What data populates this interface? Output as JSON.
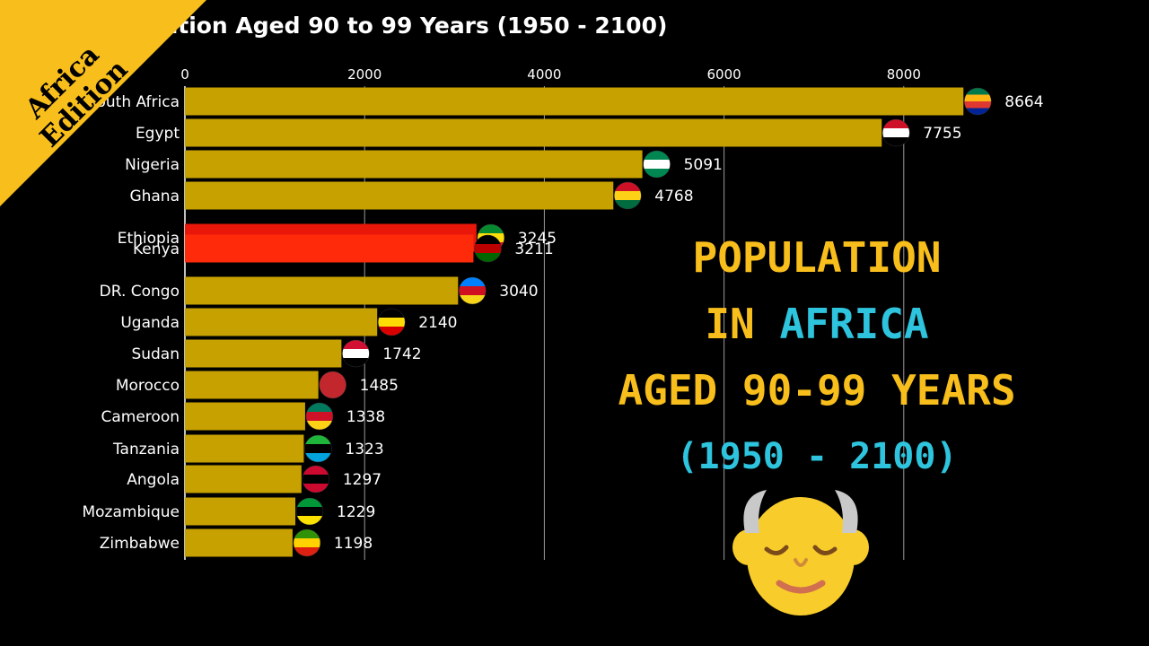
{
  "chart_data": {
    "type": "bar",
    "orientation": "horizontal",
    "title": "ulation Aged 90 to 99 Years (1950 - 2100)",
    "categories": [
      "South Africa",
      "Egypt",
      "Nigeria",
      "Ghana",
      "Ethiopia",
      "Kenya",
      "DR. Congo",
      "Uganda",
      "Sudan",
      "Morocco",
      "Cameroon",
      "Tanzania",
      "Angola",
      "Mozambique",
      "Zimbabwe"
    ],
    "category_display": [
      "outh Africa",
      "Egypt",
      "Nigeria",
      "Ghana",
      "Ethiopia",
      "Kenya",
      "DR. Congo",
      "Uganda",
      "Sudan",
      "Morocco",
      "Cameroon",
      "Tanzania",
      "Angola",
      "Mozambique",
      "Zimbabwe"
    ],
    "values": [
      8664,
      7755,
      5091,
      4768,
      3245,
      3211,
      3040,
      2140,
      1742,
      1485,
      1338,
      1323,
      1297,
      1229,
      1198
    ],
    "bar_colors": [
      "#C6A100",
      "#C6A100",
      "#C6A100",
      "#C6A100",
      "#E8170A",
      "#FF2A0A",
      "#C6A100",
      "#C6A100",
      "#C6A100",
      "#C6A100",
      "#C6A100",
      "#C6A100",
      "#C6A100",
      "#C6A100",
      "#C6A100"
    ],
    "xticks": [
      0,
      2000,
      4000,
      6000,
      8000
    ],
    "xlim": [
      0,
      8700
    ],
    "axis_position": "top",
    "grid": true,
    "legend": "none"
  },
  "badge": {
    "line1": "Africa",
    "line2": "Edition",
    "color": "#F8BE1C"
  },
  "headline": {
    "line1": "POPULATION",
    "line2_a": "IN ",
    "line2_b": "AFRICA",
    "line3": "AGED 90-99 YEARS",
    "line4": "(1950 - 2100)"
  },
  "colors": {
    "bar": "#C6A100",
    "accent_yellow": "#F8BE1C",
    "accent_cyan": "#2EC4DE",
    "background": "#000000"
  }
}
